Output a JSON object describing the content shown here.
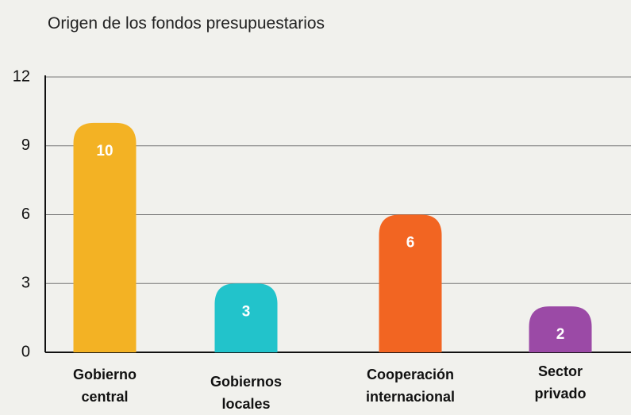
{
  "chart_data": {
    "type": "bar",
    "title": "Origen de los fondos presupuestarios",
    "categories": [
      "Gobierno central",
      "Gobiernos locales",
      "Cooperación internacional",
      "Sector privado"
    ],
    "values": [
      10,
      3,
      6,
      2
    ],
    "colors": [
      "#f3b224",
      "#22c3cb",
      "#f26522",
      "#9b4aa6"
    ],
    "ylim": [
      0,
      12
    ],
    "yticks": [
      0,
      3,
      6,
      9,
      12
    ],
    "grid": true
  }
}
